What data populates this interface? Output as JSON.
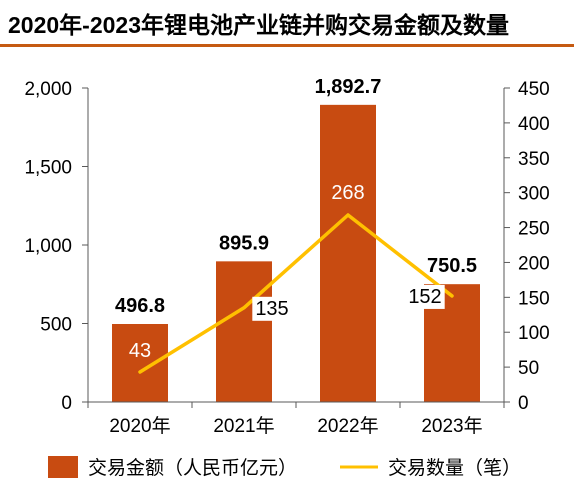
{
  "chart_data": {
    "type": "bar",
    "title": "2020年-2023年锂电池产业链并购交易金额及数量",
    "categories": [
      "2020年",
      "2021年",
      "2022年",
      "2023年"
    ],
    "series": [
      {
        "name": "交易金额（人民币亿元）",
        "type": "bar",
        "axis": "left",
        "values": [
          496.8,
          895.9,
          1892.7,
          750.5
        ],
        "data_labels": [
          "496.8",
          "895.9",
          "1,892.7",
          "750.5"
        ],
        "color": "#c84b11"
      },
      {
        "name": "交易数量（笔）",
        "type": "line",
        "axis": "right",
        "values": [
          43,
          135,
          268,
          152
        ],
        "data_labels": [
          "43",
          "135",
          "268",
          "152"
        ],
        "color": "#ffc000"
      }
    ],
    "y_left": {
      "range": [
        0,
        2000
      ],
      "ticks": [
        0,
        500,
        1000,
        1500,
        2000
      ],
      "tick_labels": [
        "0",
        "500",
        "1,000",
        "1,500",
        "2,000"
      ]
    },
    "y_right": {
      "range": [
        0,
        450
      ],
      "ticks": [
        0,
        50,
        100,
        150,
        200,
        250,
        300,
        350,
        400,
        450
      ],
      "tick_labels": [
        "0",
        "50",
        "100",
        "150",
        "200",
        "250",
        "300",
        "350",
        "400",
        "450"
      ]
    },
    "grid": false,
    "legend": "bottom"
  }
}
